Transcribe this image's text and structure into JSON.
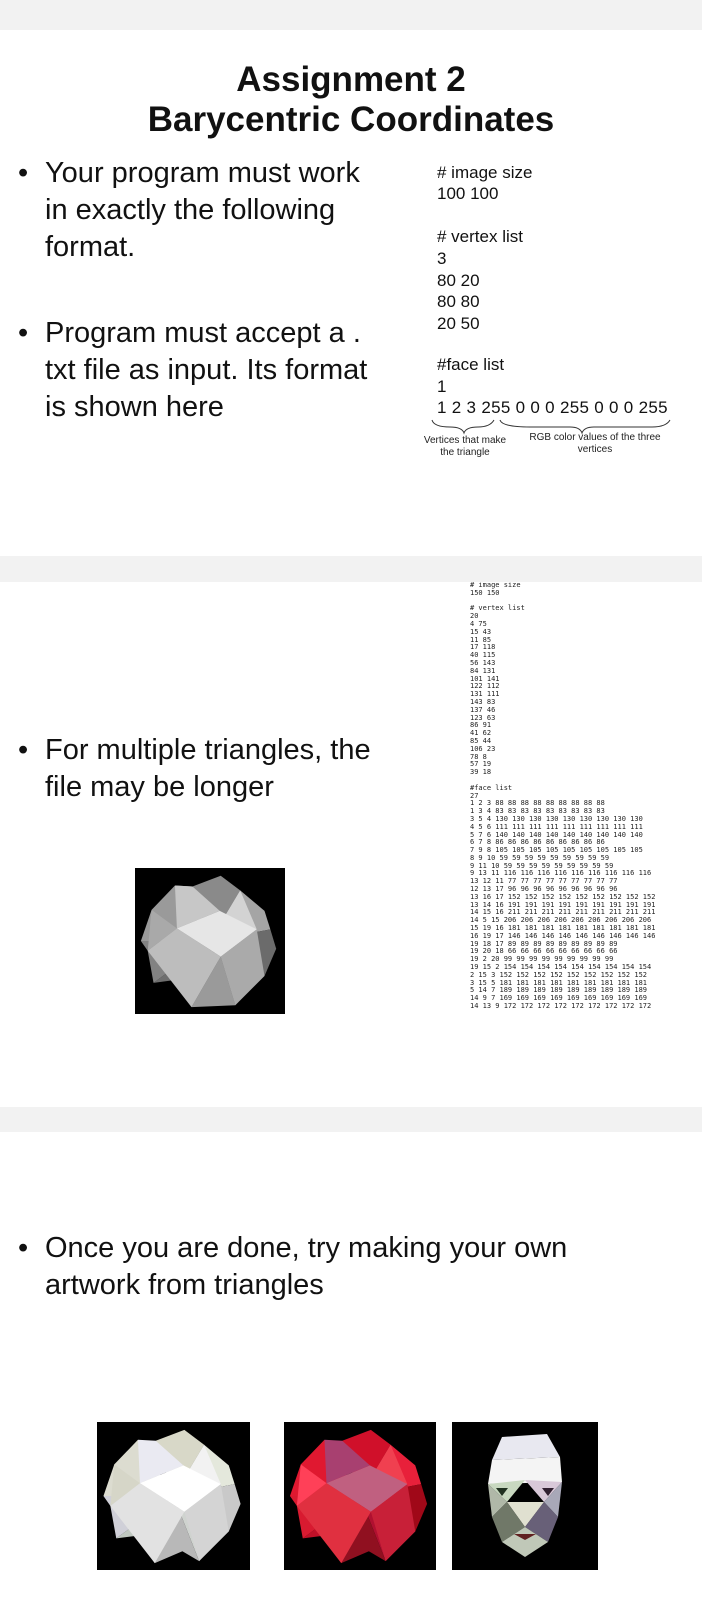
{
  "slide1": {
    "title_line1": "Assignment 2",
    "title_line2": "Barycentric Coordinates",
    "bullet1": "Your program must work\nin exactly the following\nformat.",
    "bullet2": "Program must accept a .\ntxt file as input. Its format\nis shown here",
    "bullet_glyph": "•",
    "code": {
      "image_size_header": "# image size",
      "image_size": "100 100",
      "vertex_header": "# vertex list",
      "vertex_lines": "3\n80 20\n80 80\n20 50",
      "face_header": "#face list",
      "face_count": "1",
      "face_line": "1 2 3 255 0 0 0 255 0 0 0 255"
    },
    "annotation_vertices": "Vertices that make\nthe triangle",
    "annotation_rgb": "RGB color values of the three\nvertices"
  },
  "slide2": {
    "bullet": "For multiple triangles, the\nfile may be longer",
    "bullet_glyph": "•",
    "file_text": "# image size\n150 150\n\n# vertex list\n20\n4 75\n15 43\n11 85\n17 118\n40 115\n56 143\n84 131\n101 141\n122 112\n131 111\n143 83\n137 46\n123 63\n86 91\n41 62\n85 44\n106 23\n78 8\n57 19\n39 18\n\n#face list\n27\n1 2 3 88 88 88 88 88 88 88 88 88\n1 3 4 83 83 83 83 83 83 83 83 83\n3 5 4 130 130 130 130 130 130 130 130 130\n4 5 6 111 111 111 111 111 111 111 111 111\n5 7 6 140 140 140 140 140 140 140 140 140\n6 7 8 86 86 86 86 86 86 86 86 86\n7 9 8 105 105 105 105 105 105 105 105 105\n8 9 10 59 59 59 59 59 59 59 59 59\n9 11 10 59 59 59 59 59 59 59 59 59\n9 13 11 116 116 116 116 116 116 116 116 116\n13 12 11 77 77 77 77 77 77 77 77 77\n12 13 17 96 96 96 96 96 96 96 96 96\n13 16 17 152 152 152 152 152 152 152 152 152\n13 14 16 191 191 191 191 191 191 191 191 191\n14 15 16 211 211 211 211 211 211 211 211 211\n14 5 15 206 206 206 206 206 206 206 206 206\n15 19 16 181 181 181 181 181 181 181 181 181\n16 19 17 146 146 146 146 146 146 146 146 146\n19 18 17 89 89 89 89 89 89 89 89 89\n19 20 18 66 66 66 66 66 66 66 66 66\n19 2 20 99 99 99 99 99 99 99 99 99\n19 15 2 154 154 154 154 154 154 154 154 154\n2 15 3 152 152 152 152 152 152 152 152 152\n3 15 5 181 181 181 181 181 181 181 181 181\n5 14 7 189 189 189 189 189 189 189 189 189\n14 9 7 169 169 169 169 169 169 169 169 169\n14 13 9 172 172 172 172 172 172 172 172 172"
  },
  "slide3": {
    "bullet": "Once you are done, try making your own\nartwork from triangles",
    "bullet_glyph": "•"
  },
  "colors": {
    "page_bg": "#f2f2f2",
    "slide_bg": "#ffffff",
    "render_bg": "#000000",
    "accent_red": "#e0102a"
  }
}
